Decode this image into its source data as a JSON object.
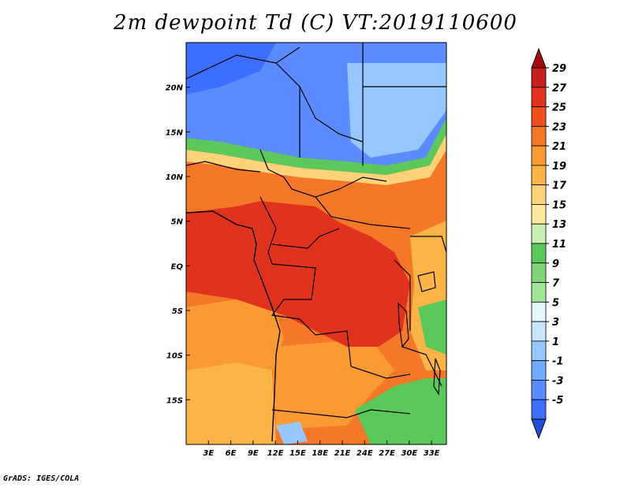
{
  "title": "2m dewpoint Td (C) VT:2019110600",
  "footer": "GrADS: IGES/COLA",
  "chart_data": {
    "type": "heatmap",
    "title": "2m dewpoint Td (C) VT:2019110600",
    "variable": "2m dewpoint temperature",
    "units": "C",
    "valid_time": "2019110600",
    "lon_range": [
      0,
      35
    ],
    "lat_range": [
      -20,
      25
    ],
    "x_ticks": [
      {
        "lon": 3,
        "label": "3E"
      },
      {
        "lon": 6,
        "label": "6E"
      },
      {
        "lon": 9,
        "label": "9E"
      },
      {
        "lon": 12,
        "label": "12E"
      },
      {
        "lon": 15,
        "label": "15E"
      },
      {
        "lon": 18,
        "label": "18E"
      },
      {
        "lon": 21,
        "label": "21E"
      },
      {
        "lon": 24,
        "label": "24E"
      },
      {
        "lon": 27,
        "label": "27E"
      },
      {
        "lon": 30,
        "label": "30E"
      },
      {
        "lon": 33,
        "label": "33E"
      }
    ],
    "y_ticks": [
      {
        "lat": 20,
        "label": "20N"
      },
      {
        "lat": 15,
        "label": "15N"
      },
      {
        "lat": 10,
        "label": "10N"
      },
      {
        "lat": 5,
        "label": "5N"
      },
      {
        "lat": 0,
        "label": "EQ"
      },
      {
        "lat": -5,
        "label": "5S"
      },
      {
        "lat": -10,
        "label": "10S"
      },
      {
        "lat": -15,
        "label": "15S"
      }
    ],
    "colorbar": {
      "labels": [
        "29",
        "27",
        "25",
        "23",
        "21",
        "19",
        "17",
        "15",
        "13",
        "11",
        "9",
        "7",
        "5",
        "3",
        "1",
        "-1",
        "-3",
        "-5"
      ],
      "colors": [
        "#a50a0a",
        "#c81e1e",
        "#e1321e",
        "#f0501e",
        "#f57828",
        "#fa9a32",
        "#fcb446",
        "#fdd278",
        "#fde89c",
        "#c8f0b4",
        "#5ac85a",
        "#82d278",
        "#a0e696",
        "#e6f8ff",
        "#c8e6ff",
        "#96c8ff",
        "#6eaaff",
        "#5a8cff",
        "#3c6eff",
        "#1e50dc"
      ]
    }
  }
}
